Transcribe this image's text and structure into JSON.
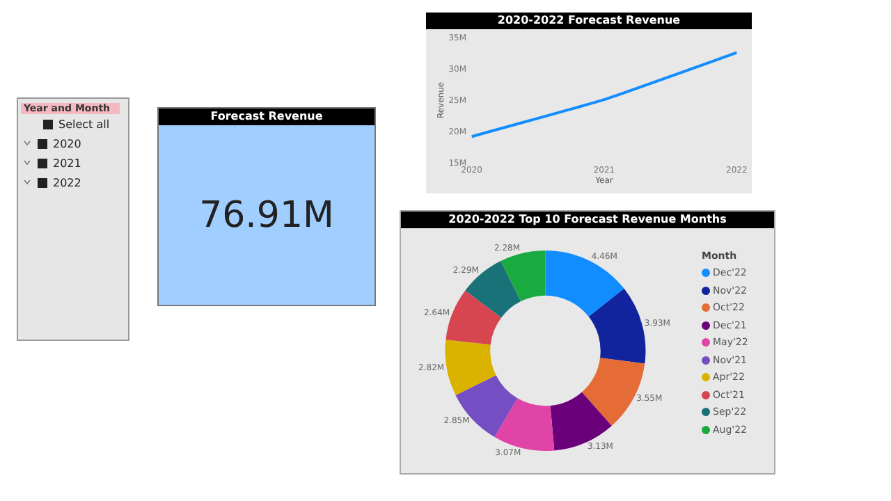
{
  "chart_data": [
    {
      "type": "other",
      "title": "Year and Month",
      "annotations": [
        "Select all",
        "2020",
        "2021",
        "2022"
      ]
    },
    {
      "type": "other",
      "title": "Forecast Revenue",
      "annotations": [
        "76.91M"
      ]
    },
    {
      "type": "line",
      "title": "2020-2022 Forecast Revenue",
      "xlabel": "Year",
      "ylabel": "Revenue",
      "categories": [
        "2020",
        "2021",
        "2022"
      ],
      "series": [
        {
          "color": "#118dff",
          "values": [
            19.2,
            25.1,
            32.6
          ]
        }
      ],
      "ylim": [
        15,
        35
      ],
      "yticks": [
        {
          "value": 15,
          "label": "15M"
        },
        {
          "value": 20,
          "label": "20M"
        },
        {
          "value": 25,
          "label": "25M"
        },
        {
          "value": 30,
          "label": "30M"
        },
        {
          "value": 35,
          "label": "35M"
        }
      ],
      "marker": "none",
      "line_style": "solid"
    },
    {
      "type": "donut",
      "title": "2020-2022 Top 10 Forecast Revenue Months",
      "legend_title": "Month",
      "legend": "right",
      "categories": [
        "Dec'22",
        "Nov'22",
        "Oct'22",
        "Dec'21",
        "May'22",
        "Nov'21",
        "Apr'22",
        "Oct'21",
        "Sep'22",
        "Aug'22"
      ],
      "values": [
        4.46,
        3.93,
        3.55,
        3.13,
        3.07,
        2.85,
        2.82,
        2.64,
        2.29,
        2.28
      ],
      "value_labels": [
        "4.46M",
        "3.93M",
        "3.55M",
        "3.13M",
        "3.07M",
        "2.85M",
        "2.82M",
        "2.64M",
        "2.29M",
        "2.28M"
      ],
      "colors": [
        "#118dff",
        "#12239e",
        "#e66c37",
        "#6b007b",
        "#e044a7",
        "#744ec2",
        "#d9b300",
        "#d64550",
        "#197278",
        "#1aab40"
      ]
    }
  ]
}
